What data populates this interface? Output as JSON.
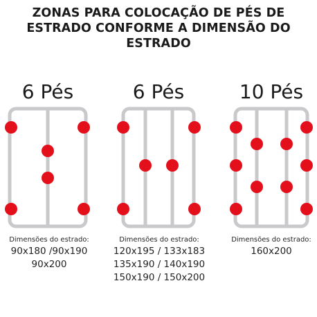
{
  "title": {
    "line1": "ZONAS PARA COLOCAÇÃO DE PÉS DE",
    "line2": "ESTRADO CONFORME A DIMENSÃO DO",
    "line3": "ESTRADO"
  },
  "colors": {
    "frame": "#c9c9cb",
    "dot": "#e3101c"
  },
  "panels": [
    {
      "feet_label": "6 Pés",
      "rails": 1,
      "caption_label": "Dimensões do estrado:",
      "sizes": [
        "90x180 /90x190",
        "90x200"
      ]
    },
    {
      "feet_label": "6 Pés",
      "rails": 2,
      "caption_label": "Dimensões do estrado:",
      "sizes": [
        "120x195 / 133x183",
        "135x190 / 140x190",
        "150x190 / 150x200"
      ]
    },
    {
      "feet_label": "10 Pés",
      "rails": 2,
      "caption_label": "Dimensões do estrado:",
      "sizes": [
        "160x200"
      ]
    }
  ]
}
